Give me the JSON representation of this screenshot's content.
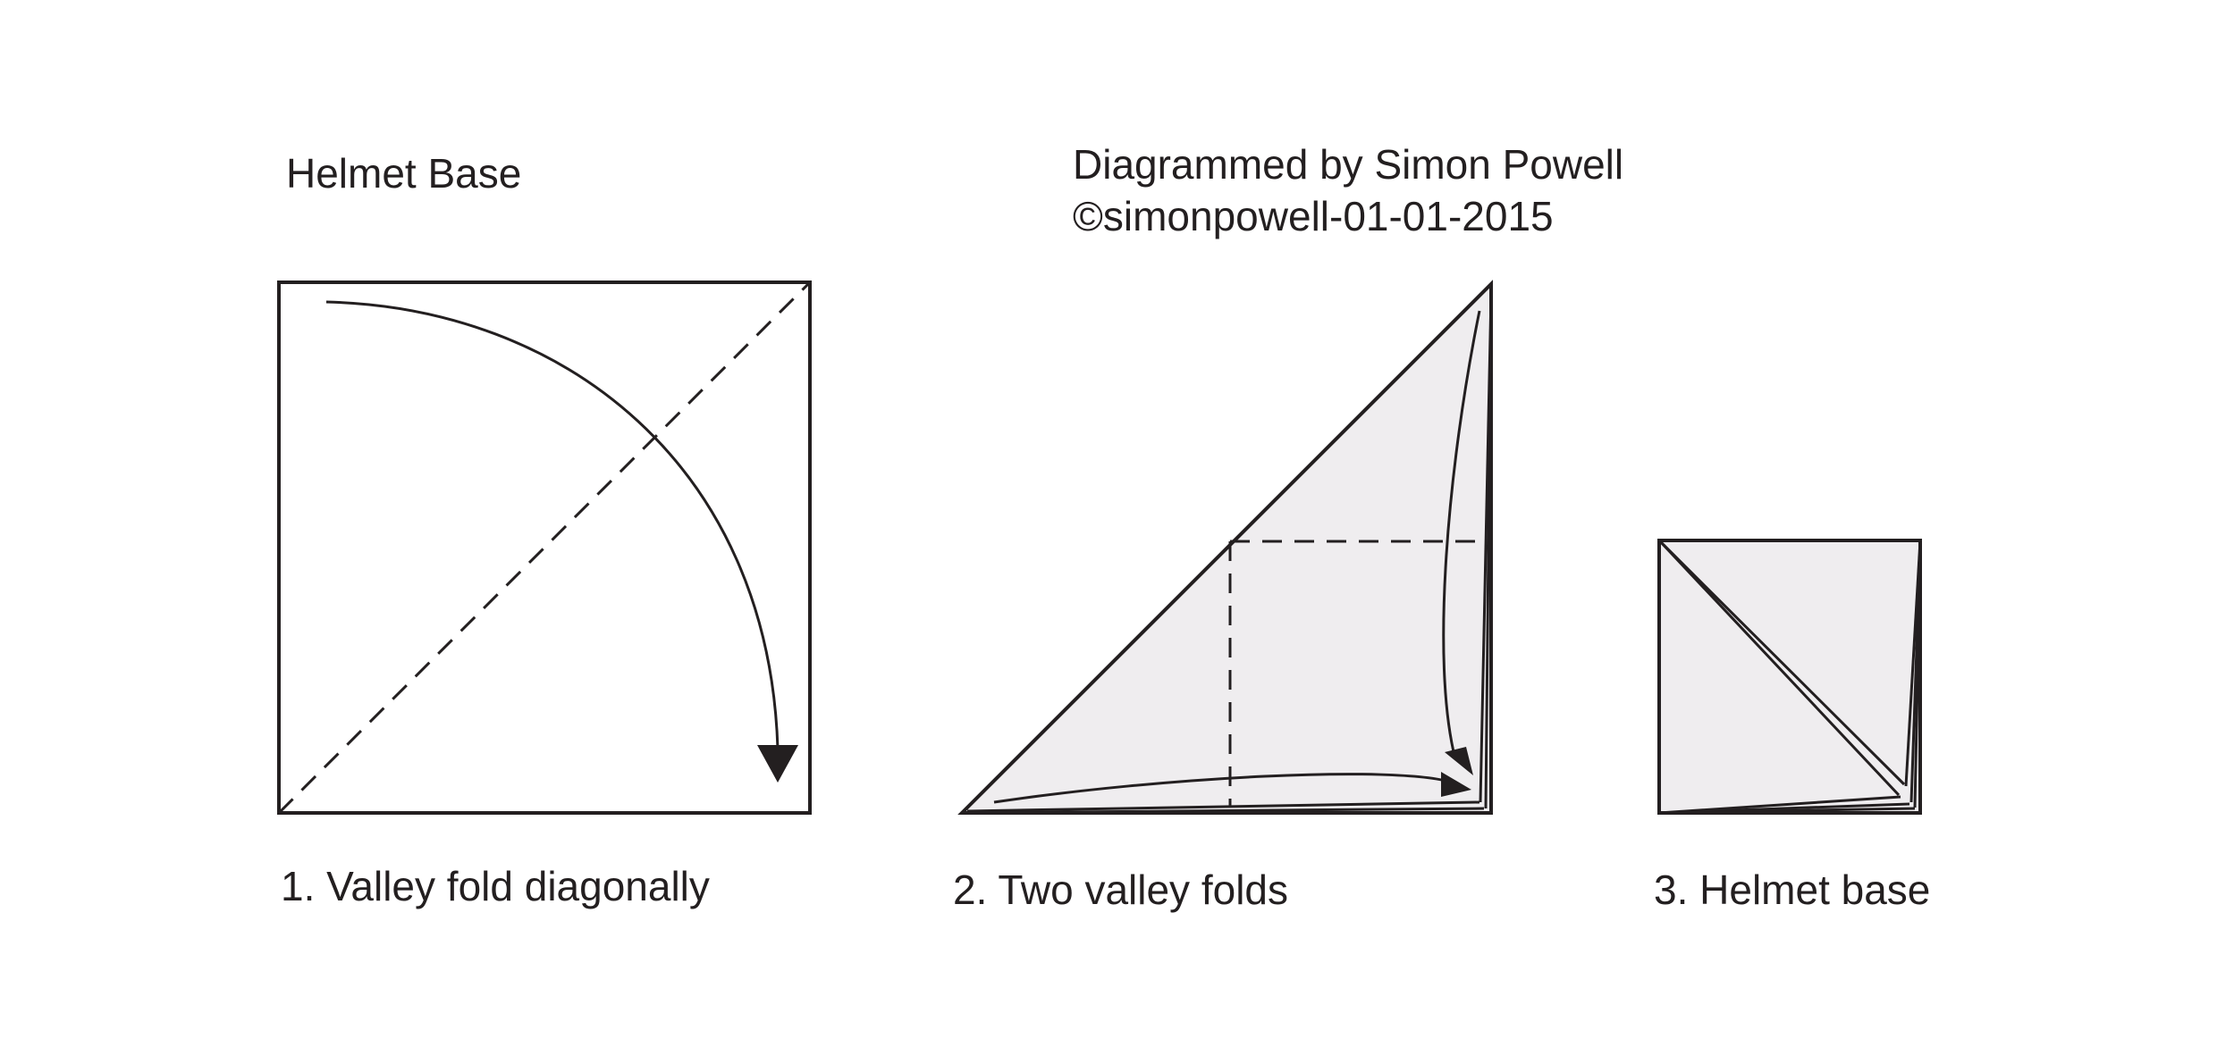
{
  "title": "Helmet Base",
  "credit": {
    "line1": "Diagrammed by Simon Powell",
    "line2": "©simonpowell-01-01-2015"
  },
  "steps": [
    {
      "label": "1. Valley fold diagonally"
    },
    {
      "label": "2. Two valley folds"
    },
    {
      "label": "3. Helmet base"
    }
  ],
  "colors": {
    "line": "#231f20",
    "paper_fill": "#efedef",
    "background": "#ffffff"
  }
}
